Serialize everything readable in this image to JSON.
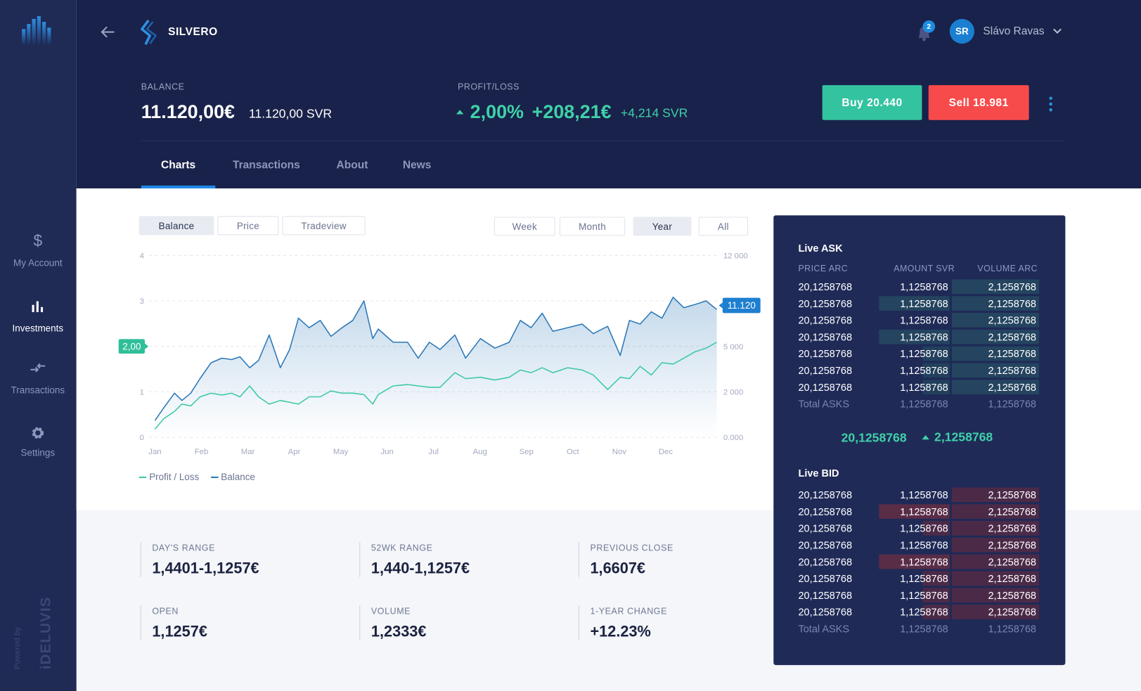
{
  "brand": "SILVERO",
  "sidebar": {
    "items": [
      {
        "label": "My Account"
      },
      {
        "label": "Investments"
      },
      {
        "label": "Transactions"
      },
      {
        "label": "Settings"
      }
    ],
    "powered": "Powered by",
    "company": "iDELUVIS"
  },
  "user": {
    "initials": "SR",
    "name": "Slávo Ravas",
    "notifications": "2"
  },
  "balance": {
    "label": "BALANCE",
    "value": "11.120,00€",
    "svr": "11.120,00 SVR"
  },
  "profit": {
    "label": "PROFIT/LOSS",
    "percent": "2,00%",
    "amount": "+208,21€",
    "svr": "+4,214 SVR"
  },
  "buttons": {
    "buy": "Buy 20.440",
    "sell": "Sell 18.981"
  },
  "tabs": [
    "Charts",
    "Transactions",
    "About",
    "News"
  ],
  "chart_toggles": [
    "Balance",
    "Price",
    "Tradeview"
  ],
  "periods": [
    "Week",
    "Month",
    "Year",
    "All"
  ],
  "chart": {
    "type": "line",
    "x": [
      0,
      0.19,
      0.42,
      0.58,
      0.77,
      0.97,
      1.21,
      1.44,
      1.65,
      1.83,
      2.04,
      2.23,
      2.46,
      2.7,
      2.9,
      3.09,
      3.32,
      3.56,
      3.79,
      4.03,
      4.26,
      4.5,
      4.69,
      4.81,
      5.13,
      5.44,
      5.67,
      5.91,
      6.14,
      6.46,
      6.69,
      7.01,
      7.32,
      7.63,
      7.87,
      8.1,
      8.34,
      8.57,
      8.89,
      9.2,
      9.44,
      9.75,
      10.02,
      10.22,
      10.45,
      10.69,
      10.92,
      11.16,
      11.39,
      11.63,
      11.87,
      12.1
    ],
    "series": [
      {
        "name": "Profit / Loss",
        "color": "#3cc9a4",
        "values": [
          0.18,
          0.41,
          0.57,
          0.73,
          0.69,
          0.89,
          0.97,
          0.93,
          0.97,
          0.89,
          1.13,
          0.89,
          0.73,
          0.81,
          0.77,
          0.73,
          0.89,
          0.89,
          1.02,
          0.97,
          0.97,
          0.94,
          0.73,
          0.94,
          1.13,
          1.16,
          1.13,
          1.1,
          1.1,
          1.42,
          1.29,
          1.32,
          1.26,
          1.32,
          1.48,
          1.42,
          1.53,
          1.42,
          1.53,
          1.48,
          1.37,
          1.05,
          1.32,
          1.29,
          1.56,
          1.37,
          1.64,
          1.61,
          1.74,
          1.88,
          1.96,
          2.09
        ]
      },
      {
        "name": "Balance",
        "color": "#2c78b8",
        "values": [
          0.37,
          0.65,
          0.97,
          0.81,
          0.97,
          1.29,
          1.64,
          1.74,
          1.71,
          1.77,
          1.53,
          1.69,
          2.25,
          1.53,
          1.93,
          2.62,
          2.41,
          2.57,
          2.22,
          2.41,
          2.57,
          3.0,
          2.17,
          2.38,
          2.09,
          2.09,
          1.74,
          2.09,
          1.93,
          2.25,
          1.74,
          2.17,
          1.96,
          2.09,
          2.57,
          2.41,
          2.73,
          2.33,
          2.41,
          2.49,
          2.28,
          2.44,
          1.8,
          2.57,
          2.49,
          2.76,
          2.62,
          3.08,
          2.85,
          2.92,
          3.0,
          2.81
        ]
      }
    ],
    "xlim": [
      -0.1,
      12.1
    ],
    "xticks": [
      {
        "value": 0,
        "label": "Jan"
      },
      {
        "value": 1,
        "label": "Feb"
      },
      {
        "value": 2,
        "label": "Mar"
      },
      {
        "value": 3,
        "label": "Apr"
      },
      {
        "value": 4,
        "label": "May"
      },
      {
        "value": 5,
        "label": "Jun"
      },
      {
        "value": 6,
        "label": "Jul"
      },
      {
        "value": 7,
        "label": "Aug"
      },
      {
        "value": 8,
        "label": "Sep"
      },
      {
        "value": 9,
        "label": "Oct"
      },
      {
        "value": 10,
        "label": "Nov"
      },
      {
        "value": 11,
        "label": "Dec"
      }
    ],
    "ylim": [
      0,
      4
    ],
    "yticks": [
      0,
      1,
      2,
      3,
      4
    ],
    "y2ticks": [
      {
        "value": 0,
        "label": "0.000"
      },
      {
        "value": 2000,
        "label": "2 000"
      },
      {
        "value": 5000,
        "label": "5 000"
      },
      {
        "value": 12000,
        "label": "12 000"
      }
    ],
    "grid": true,
    "annotations": [
      {
        "text": "2,00",
        "y": 2,
        "side": "left",
        "color": "#2fbf98"
      },
      {
        "text": "11.120",
        "y": 2.9,
        "side": "right",
        "color": "#1e7fd0"
      }
    ]
  },
  "stats": [
    {
      "label": "DAY'S RANGE",
      "value": "1,4401-1,1257€"
    },
    {
      "label": "52WK RANGE",
      "value": "1,440-1,1257€"
    },
    {
      "label": "PREVIOUS CLOSE",
      "value": "1,6607€"
    },
    {
      "label": "OPEN",
      "value": "1,1257€"
    },
    {
      "label": "VOLUME",
      "value": "1,2333€"
    },
    {
      "label": "1-YEAR CHANGE",
      "value": "+12.23%"
    }
  ],
  "ask": {
    "title": "Live ASK",
    "columns": [
      "PRICE ARC",
      "AMOUNT SVR",
      "VOLUME ARC"
    ],
    "rows": [
      [
        "20,1258768",
        "1,1258768",
        "2,1258768"
      ],
      [
        "20,1258768",
        "1,1258768",
        "2,1258768"
      ],
      [
        "20,1258768",
        "1,1258768",
        "2,1258768"
      ],
      [
        "20,1258768",
        "1,1258768",
        "2,1258768"
      ],
      [
        "20,1258768",
        "1,1258768",
        "2,1258768"
      ],
      [
        "20,1258768",
        "1,1258768",
        "2,1258768"
      ],
      [
        "20,1258768",
        "1,1258768",
        "2,1258768"
      ]
    ],
    "total": [
      "Total ASKS",
      "1,1258768",
      "1,1258768"
    ]
  },
  "mid": {
    "price": "20,1258768",
    "change": "2,1258768"
  },
  "bid": {
    "title": "Live BID",
    "rows": [
      [
        "20,1258768",
        "1,1258768",
        "2,1258768"
      ],
      [
        "20,1258768",
        "1,1258768",
        "2,1258768"
      ],
      [
        "20,1258768",
        "1,1258768",
        "2,1258768"
      ],
      [
        "20,1258768",
        "1,1258768",
        "2,1258768"
      ],
      [
        "20,1258768",
        "1,1258768",
        "2,1258768"
      ],
      [
        "20,1258768",
        "1,1258768",
        "2,1258768"
      ],
      [
        "20,1258768",
        "1,1258768",
        "2,1258768"
      ],
      [
        "20,1258768",
        "1,1258768",
        "2,1258768"
      ]
    ],
    "total": [
      "Total ASKS",
      "1,1258768",
      "1,1258768"
    ]
  }
}
